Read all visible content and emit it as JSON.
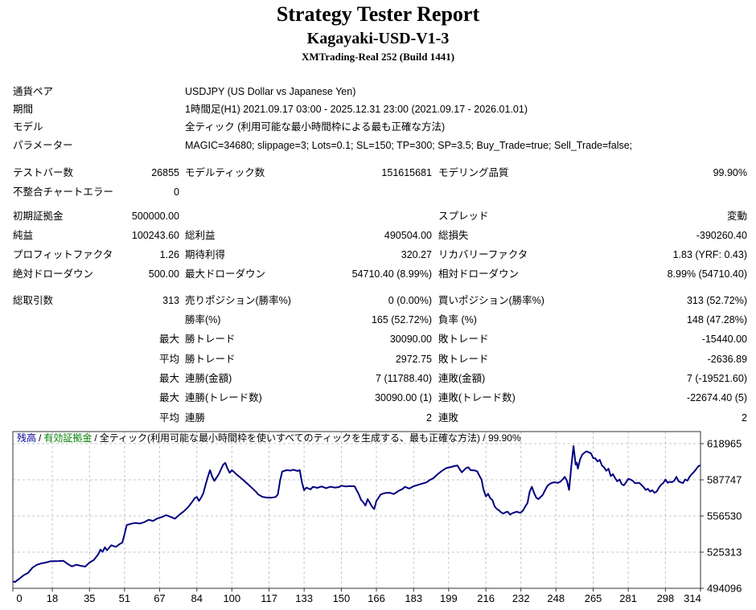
{
  "header": {
    "title": "Strategy Tester Report",
    "strategy": "Kagayaki-USD-V1-3",
    "server": "XMTrading-Real 252 (Build 1441)"
  },
  "info_rows": [
    {
      "label": "通貨ペア",
      "value": "USDJPY (US Dollar vs Japanese Yen)"
    },
    {
      "label": "期間",
      "value": "1時間足(H1) 2021.09.17 03:00 - 2025.12.31 23:00 (2021.09.17 - 2026.01.01)"
    },
    {
      "label": "モデル",
      "value": "全ティック (利用可能な最小時間枠による最も正確な方法)"
    },
    {
      "label": "パラメーター",
      "value": "MAGIC=34680; slippage=3; Lots=0.1; SL=150; TP=300; SP=3.5; Buy_Trade=true; Sell_Trade=false;"
    }
  ],
  "stats": {
    "rows": [
      {
        "gap": "",
        "c": [
          "テストバー数",
          "26855",
          "モデルティック数",
          "151615681",
          "モデリング品質",
          "99.90%"
        ]
      },
      {
        "gap": "",
        "c": [
          "不整合チャートエラー",
          "0",
          "",
          "",
          "",
          ""
        ]
      },
      {
        "gap": "gap5",
        "c": [
          "初期証拠金",
          "500000.00",
          "",
          "",
          "スプレッド",
          "変動"
        ]
      },
      {
        "gap": "",
        "c": [
          "純益",
          "100243.60",
          "総利益",
          "490504.00",
          "総損失",
          "-390260.40"
        ]
      },
      {
        "gap": "",
        "c": [
          "プロフィットファクタ",
          "1.26",
          "期待利得",
          "320.27",
          "リカバリーファクタ",
          "1.83 (YRF: 0.43)"
        ]
      },
      {
        "gap": "",
        "c": [
          "絶対ドローダウン",
          "500.00",
          "最大ドローダウン",
          "54710.40 (8.99%)",
          "相対ドローダウン",
          "8.99% (54710.40)"
        ]
      },
      {
        "gap": "gap8",
        "c": [
          "総取引数",
          "313",
          "売りポジション(勝率%)",
          "0 (0.00%)",
          "買いポジション(勝率%)",
          "313 (52.72%)"
        ]
      },
      {
        "gap": "",
        "c": [
          "",
          "",
          "勝率(%)",
          "165 (52.72%)",
          "負率 (%)",
          "148 (47.28%)"
        ]
      },
      {
        "gap": "",
        "c": [
          "",
          "最大",
          "勝トレード",
          "30090.00",
          "敗トレード",
          "-15440.00"
        ]
      },
      {
        "gap": "",
        "c": [
          "",
          "平均",
          "勝トレード",
          "2972.75",
          "敗トレード",
          "-2636.89"
        ]
      },
      {
        "gap": "",
        "c": [
          "",
          "最大",
          "連勝(金額)",
          "7 (11788.40)",
          "連敗(金額)",
          "7 (-19521.60)"
        ]
      },
      {
        "gap": "",
        "c": [
          "",
          "最大",
          "連勝(トレード数)",
          "30090.00 (1)",
          "連敗(トレード数)",
          "-22674.40 (5)"
        ]
      },
      {
        "gap": "",
        "c": [
          "",
          "平均",
          "連勝",
          "2",
          "連敗",
          "2"
        ]
      }
    ]
  },
  "chart_data": {
    "type": "line",
    "legend": [
      {
        "text": "残高",
        "color": "#000099"
      },
      {
        "text": "/",
        "color": "#000000"
      },
      {
        "text": "有効証拠金",
        "color": "#008000"
      },
      {
        "text": "/",
        "color": "#000000"
      },
      {
        "text": "全ティック(利用可能な最小時間枠を使いすべてのティックを生成する、最も正確な方法) / 99.90%",
        "color": "#000000"
      }
    ],
    "x_ticks": [
      0,
      18,
      35,
      51,
      67,
      84,
      100,
      117,
      133,
      150,
      166,
      183,
      199,
      216,
      232,
      248,
      265,
      281,
      298,
      314
    ],
    "y_ticks": [
      618965,
      587747,
      556530,
      525313,
      494096
    ],
    "x_range": [
      0,
      314
    ],
    "ylim": [
      494096,
      629368
    ],
    "grid": true,
    "line_color": "#000080",
    "grid_color": "#c4c4c4",
    "series": [
      {
        "name": "残高",
        "color": "#000080",
        "points": [
          [
            0,
            500000
          ],
          [
            1,
            499500
          ],
          [
            2,
            501000
          ],
          [
            3,
            502400
          ],
          [
            5,
            505500
          ],
          [
            7,
            507500
          ],
          [
            9,
            512000
          ],
          [
            11,
            514400
          ],
          [
            13,
            515600
          ],
          [
            15,
            516300
          ],
          [
            17,
            517400
          ],
          [
            19,
            517500
          ],
          [
            21,
            517600
          ],
          [
            23,
            517900
          ],
          [
            25,
            515100
          ],
          [
            27,
            513000
          ],
          [
            29,
            514400
          ],
          [
            31,
            513500
          ],
          [
            33,
            512800
          ],
          [
            35,
            516300
          ],
          [
            37,
            518600
          ],
          [
            39,
            523500
          ],
          [
            40,
            527500
          ],
          [
            41,
            525500
          ],
          [
            42,
            529500
          ],
          [
            43,
            527000
          ],
          [
            45,
            531300
          ],
          [
            47,
            529800
          ],
          [
            49,
            532500
          ],
          [
            50,
            533600
          ],
          [
            51,
            541000
          ],
          [
            52,
            548700
          ],
          [
            54,
            549800
          ],
          [
            56,
            550500
          ],
          [
            58,
            550000
          ],
          [
            60,
            551200
          ],
          [
            62,
            553200
          ],
          [
            64,
            552300
          ],
          [
            66,
            554400
          ],
          [
            68,
            555600
          ],
          [
            70,
            557200
          ],
          [
            72,
            555800
          ],
          [
            74,
            554200
          ],
          [
            76,
            557500
          ],
          [
            78,
            560500
          ],
          [
            80,
            564000
          ],
          [
            82,
            569000
          ],
          [
            83,
            571800
          ],
          [
            84,
            573000
          ],
          [
            85,
            569500
          ],
          [
            86,
            572500
          ],
          [
            87,
            576400
          ],
          [
            88,
            583400
          ],
          [
            89,
            590000
          ],
          [
            90,
            596100
          ],
          [
            91,
            590500
          ],
          [
            92,
            586800
          ],
          [
            94,
            592600
          ],
          [
            96,
            600700
          ],
          [
            97,
            602400
          ],
          [
            98,
            597500
          ],
          [
            99,
            593800
          ],
          [
            100,
            596100
          ],
          [
            101,
            594500
          ],
          [
            102,
            592600
          ],
          [
            104,
            589500
          ],
          [
            105,
            587900
          ],
          [
            107,
            584500
          ],
          [
            109,
            581000
          ],
          [
            111,
            577500
          ],
          [
            112,
            575200
          ],
          [
            114,
            573000
          ],
          [
            116,
            572400
          ],
          [
            118,
            572300
          ],
          [
            120,
            573000
          ],
          [
            121,
            575200
          ],
          [
            122,
            587000
          ],
          [
            123,
            594900
          ],
          [
            125,
            596100
          ],
          [
            127,
            595700
          ],
          [
            128,
            596500
          ],
          [
            130,
            595400
          ],
          [
            131,
            596100
          ],
          [
            132,
            585600
          ],
          [
            133,
            578700
          ],
          [
            134,
            581000
          ],
          [
            136,
            579500
          ],
          [
            137,
            581700
          ],
          [
            139,
            580800
          ],
          [
            141,
            582000
          ],
          [
            143,
            580500
          ],
          [
            145,
            581800
          ],
          [
            147,
            581000
          ],
          [
            149,
            581500
          ],
          [
            150,
            582700
          ],
          [
            152,
            582000
          ],
          [
            154,
            582300
          ],
          [
            156,
            582200
          ],
          [
            158,
            575200
          ],
          [
            159,
            570500
          ],
          [
            160,
            568300
          ],
          [
            161,
            565500
          ],
          [
            162,
            571100
          ],
          [
            163,
            568000
          ],
          [
            164,
            564500
          ],
          [
            165,
            562500
          ],
          [
            166,
            569500
          ],
          [
            168,
            575200
          ],
          [
            170,
            576400
          ],
          [
            172,
            576600
          ],
          [
            174,
            575500
          ],
          [
            176,
            578000
          ],
          [
            178,
            579900
          ],
          [
            179,
            581700
          ],
          [
            181,
            580200
          ],
          [
            183,
            582200
          ],
          [
            185,
            583400
          ],
          [
            187,
            584500
          ],
          [
            189,
            585600
          ],
          [
            190,
            587200
          ],
          [
            192,
            589100
          ],
          [
            194,
            592600
          ],
          [
            196,
            595600
          ],
          [
            198,
            597900
          ],
          [
            200,
            598800
          ],
          [
            202,
            599800
          ],
          [
            203,
            600000
          ],
          [
            204,
            597000
          ],
          [
            205,
            594200
          ],
          [
            207,
            597900
          ],
          [
            208,
            598600
          ],
          [
            209,
            596100
          ],
          [
            211,
            595800
          ],
          [
            212,
            595000
          ],
          [
            213,
            591400
          ],
          [
            214,
            587900
          ],
          [
            215,
            578700
          ],
          [
            216,
            573400
          ],
          [
            217,
            575700
          ],
          [
            218,
            571800
          ],
          [
            219,
            570200
          ],
          [
            220,
            564800
          ],
          [
            221,
            562500
          ],
          [
            222,
            561400
          ],
          [
            223,
            559500
          ],
          [
            224,
            558600
          ],
          [
            225,
            559800
          ],
          [
            226,
            560200
          ],
          [
            227,
            557700
          ],
          [
            228,
            558800
          ],
          [
            229,
            559500
          ],
          [
            230,
            560200
          ],
          [
            231,
            559600
          ],
          [
            232,
            559500
          ],
          [
            233,
            561400
          ],
          [
            234,
            564800
          ],
          [
            235,
            567800
          ],
          [
            236,
            577500
          ],
          [
            237,
            581700
          ],
          [
            238,
            576400
          ],
          [
            239,
            572300
          ],
          [
            240,
            571100
          ],
          [
            241,
            572900
          ],
          [
            242,
            574800
          ],
          [
            243,
            578700
          ],
          [
            244,
            582200
          ],
          [
            245,
            584000
          ],
          [
            246,
            585000
          ],
          [
            247,
            585600
          ],
          [
            249,
            585200
          ],
          [
            250,
            586100
          ],
          [
            251,
            588000
          ],
          [
            252,
            590300
          ],
          [
            253,
            586900
          ],
          [
            254,
            579000
          ],
          [
            255,
            599000
          ],
          [
            256,
            616900
          ],
          [
            257,
            600700
          ],
          [
            257.5,
            602500
          ],
          [
            258,
            597300
          ],
          [
            259,
            605300
          ],
          [
            260,
            609500
          ],
          [
            261,
            611100
          ],
          [
            262,
            612300
          ],
          [
            263,
            611500
          ],
          [
            264,
            610500
          ],
          [
            265,
            606500
          ],
          [
            266,
            606200
          ],
          [
            267,
            603500
          ],
          [
            268,
            605000
          ],
          [
            269,
            600000
          ],
          [
            270,
            598400
          ],
          [
            271,
            595500
          ],
          [
            272,
            597300
          ],
          [
            273,
            591000
          ],
          [
            274,
            592600
          ],
          [
            275,
            589200
          ],
          [
            276,
            586500
          ],
          [
            277,
            588000
          ],
          [
            278,
            584000
          ],
          [
            279,
            583000
          ],
          [
            280,
            585500
          ],
          [
            281,
            588500
          ],
          [
            282,
            588000
          ],
          [
            283,
            587000
          ],
          [
            284,
            585000
          ],
          [
            285,
            584800
          ],
          [
            286,
            585200
          ],
          [
            287,
            583400
          ],
          [
            288,
            581500
          ],
          [
            289,
            579000
          ],
          [
            290,
            580000
          ],
          [
            291,
            577600
          ],
          [
            292,
            578700
          ],
          [
            293,
            576500
          ],
          [
            294,
            577600
          ],
          [
            295,
            581000
          ],
          [
            296,
            583500
          ],
          [
            297,
            585000
          ],
          [
            298,
            588000
          ],
          [
            299,
            585200
          ],
          [
            300,
            586000
          ],
          [
            301,
            585700
          ],
          [
            302,
            586900
          ],
          [
            303,
            590300
          ],
          [
            304,
            586500
          ],
          [
            305,
            585500
          ],
          [
            306,
            585000
          ],
          [
            307,
            588000
          ],
          [
            308,
            587000
          ],
          [
            309,
            590300
          ],
          [
            310,
            592600
          ],
          [
            311,
            594500
          ],
          [
            312,
            597000
          ],
          [
            313,
            599500
          ],
          [
            314,
            600243.6
          ]
        ]
      }
    ]
  }
}
